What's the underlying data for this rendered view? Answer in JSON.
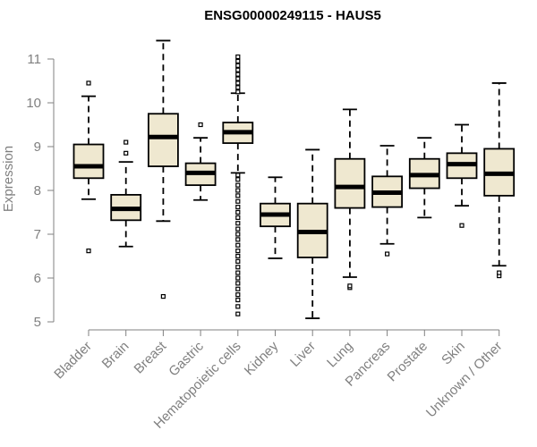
{
  "chart_data": {
    "type": "boxplot",
    "title": "ENSG00000249115 - HAUS5",
    "xlabel": "",
    "ylabel": "Expression",
    "ylim": [
      5,
      11.5
    ],
    "yticks": [
      5,
      6,
      7,
      8,
      9,
      10,
      11
    ],
    "grid": false,
    "box_fill": "#efe8d0",
    "box_stroke": "#000000",
    "axis_color": "#808080",
    "categories": [
      "Bladder",
      "Brain",
      "Breast",
      "Gastric",
      "Hematopoietic cells",
      "Kidney",
      "Liver",
      "Lung",
      "Pancreas",
      "Prostate",
      "Skin",
      "Unknown / Other"
    ],
    "boxes": [
      {
        "label": "Bladder",
        "whisker_low": 7.8,
        "q1": 8.28,
        "median": 8.55,
        "q3": 9.05,
        "whisker_high": 10.15,
        "outliers": [
          6.62,
          10.45
        ]
      },
      {
        "label": "Brain",
        "whisker_low": 6.72,
        "q1": 7.32,
        "median": 7.58,
        "q3": 7.9,
        "whisker_high": 8.65,
        "outliers": [
          8.85,
          9.1
        ]
      },
      {
        "label": "Breast",
        "whisker_low": 7.3,
        "q1": 8.55,
        "median": 9.22,
        "q3": 9.75,
        "whisker_high": 11.42,
        "outliers": [
          5.58
        ]
      },
      {
        "label": "Gastric",
        "whisker_low": 7.78,
        "q1": 8.12,
        "median": 8.4,
        "q3": 8.62,
        "whisker_high": 9.2,
        "outliers": [
          9.5
        ]
      },
      {
        "label": "Hematopoietic cells",
        "whisker_low": 8.4,
        "q1": 9.08,
        "median": 9.33,
        "q3": 9.55,
        "whisker_high": 10.22,
        "outliers": [
          5.18,
          5.35,
          5.5,
          5.62,
          5.75,
          5.88,
          6.0,
          6.12,
          6.25,
          6.38,
          6.5,
          6.62,
          6.75,
          6.88,
          7.0,
          7.12,
          7.25,
          7.38,
          7.5,
          7.62,
          7.75,
          7.88,
          8.0,
          8.12,
          8.25,
          8.35,
          10.25,
          10.35,
          10.45,
          10.55,
          10.65,
          10.75,
          10.85,
          10.95,
          11.05
        ]
      },
      {
        "label": "Kidney",
        "whisker_low": 6.45,
        "q1": 7.18,
        "median": 7.45,
        "q3": 7.7,
        "whisker_high": 8.3,
        "outliers": []
      },
      {
        "label": "Liver",
        "whisker_low": 5.08,
        "q1": 6.47,
        "median": 7.05,
        "q3": 7.7,
        "whisker_high": 8.93,
        "outliers": []
      },
      {
        "label": "Lung",
        "whisker_low": 6.02,
        "q1": 7.6,
        "median": 8.08,
        "q3": 8.72,
        "whisker_high": 9.85,
        "outliers": [
          5.78,
          5.82
        ]
      },
      {
        "label": "Pancreas",
        "whisker_low": 6.78,
        "q1": 7.62,
        "median": 7.95,
        "q3": 8.32,
        "whisker_high": 9.02,
        "outliers": [
          6.55
        ]
      },
      {
        "label": "Prostate",
        "whisker_low": 7.38,
        "q1": 8.05,
        "median": 8.35,
        "q3": 8.72,
        "whisker_high": 9.2,
        "outliers": []
      },
      {
        "label": "Skin",
        "whisker_low": 7.65,
        "q1": 8.28,
        "median": 8.6,
        "q3": 8.85,
        "whisker_high": 9.5,
        "outliers": [
          7.2
        ]
      },
      {
        "label": "Unknown / Other",
        "whisker_low": 6.28,
        "q1": 7.88,
        "median": 8.38,
        "q3": 8.95,
        "whisker_high": 10.45,
        "outliers": [
          6.05,
          6.12
        ]
      }
    ]
  }
}
